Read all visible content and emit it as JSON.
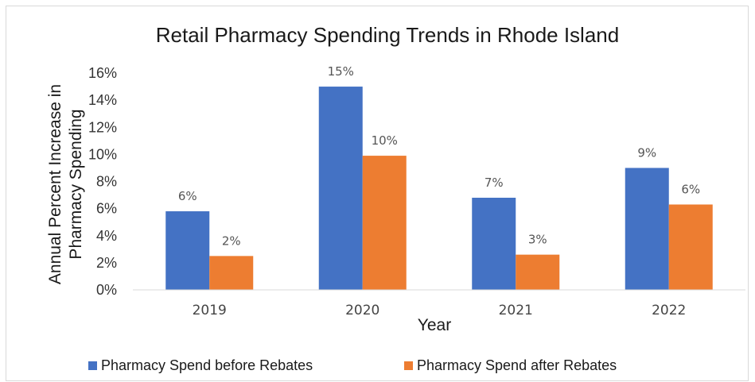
{
  "chart_data": {
    "type": "bar",
    "title": "Retail Pharmacy Spending Trends in Rhode Island",
    "xlabel": "Year",
    "ylabel_lines": [
      "Annual Percent Increase in",
      "Pharmacy Spending"
    ],
    "categories": [
      "2019",
      "2020",
      "2021",
      "2022"
    ],
    "ylim": [
      0,
      16
    ],
    "yticks": [
      0,
      2,
      4,
      6,
      8,
      10,
      12,
      14,
      16
    ],
    "ytick_labels": [
      "0%",
      "2%",
      "4%",
      "6%",
      "8%",
      "10%",
      "12%",
      "14%",
      "16%"
    ],
    "grid": false,
    "legend_position": "bottom",
    "series": [
      {
        "name": "Pharmacy Spend before Rebates",
        "color": "#4472C4",
        "values": [
          5.8,
          15.0,
          6.8,
          9.0
        ],
        "labels": [
          "6%",
          "15%",
          "7%",
          "9%"
        ]
      },
      {
        "name": "Pharmacy Spend after Rebates",
        "color": "#ED7D31",
        "values": [
          2.5,
          9.9,
          2.6,
          6.3
        ],
        "labels": [
          "2%",
          "10%",
          "3%",
          "6%"
        ]
      }
    ]
  }
}
